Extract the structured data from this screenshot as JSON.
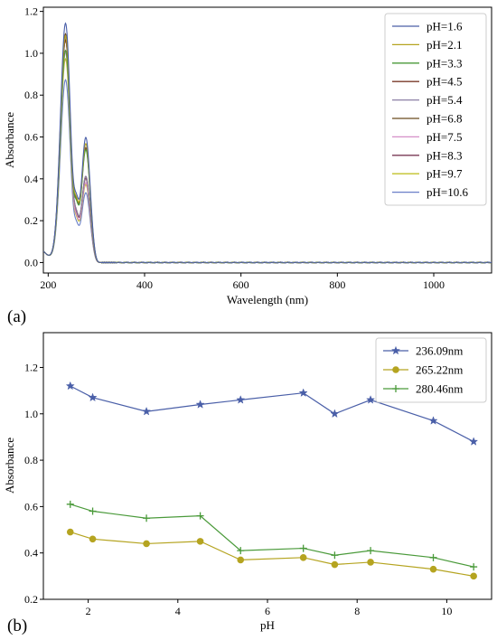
{
  "chart_data": [
    {
      "type": "line",
      "panel_label": "(a)",
      "xlabel": "Wavelength (nm)",
      "ylabel": "Absorbance",
      "xlim": [
        190,
        1120
      ],
      "ylim": [
        -0.05,
        1.22
      ],
      "xticks": [
        200,
        400,
        600,
        800,
        1000
      ],
      "yticks": [
        0.0,
        0.2,
        0.4,
        0.6,
        0.8,
        1.0,
        1.2
      ],
      "legend_position": "top-right",
      "grid": false,
      "series": [
        {
          "name": "pH=1.6",
          "color": "#4a5fa8",
          "peak1": 1.14,
          "peak2": 0.61,
          "trough": 0.45
        },
        {
          "name": "pH=2.1",
          "color": "#b5a420",
          "peak1": 1.08,
          "peak2": 0.58,
          "trough": 0.43
        },
        {
          "name": "pH=3.3",
          "color": "#4a9a3a",
          "peak1": 1.01,
          "peak2": 0.55,
          "trough": 0.41
        },
        {
          "name": "pH=4.5",
          "color": "#7a3a2a",
          "peak1": 1.06,
          "peak2": 0.56,
          "trough": 0.42
        },
        {
          "name": "pH=5.4",
          "color": "#8c7fa6",
          "peak1": 1.07,
          "peak2": 0.42,
          "trough": 0.33
        },
        {
          "name": "pH=6.8",
          "color": "#6b4a1f",
          "peak1": 1.09,
          "peak2": 0.42,
          "trough": 0.33
        },
        {
          "name": "pH=7.5",
          "color": "#d68fc8",
          "peak1": 1.0,
          "peak2": 0.39,
          "trough": 0.3
        },
        {
          "name": "pH=8.3",
          "color": "#7a3a55",
          "peak1": 1.06,
          "peak2": 0.41,
          "trough": 0.32
        },
        {
          "name": "pH=9.7",
          "color": "#c2c22a",
          "peak1": 0.97,
          "peak2": 0.38,
          "trough": 0.29
        },
        {
          "name": "pH=10.6",
          "color": "#6a7fc8",
          "peak1": 0.87,
          "peak2": 0.34,
          "trough": 0.26
        }
      ]
    },
    {
      "type": "line",
      "panel_label": "(b)",
      "xlabel": "pH",
      "ylabel": "Absorbance",
      "xlim": [
        1.0,
        11.0
      ],
      "ylim": [
        0.2,
        1.35
      ],
      "xticks": [
        2,
        4,
        6,
        8,
        10
      ],
      "yticks": [
        0.2,
        0.4,
        0.6,
        0.8,
        1.0,
        1.2
      ],
      "legend_position": "top-right",
      "grid": false,
      "x": [
        1.6,
        2.1,
        3.3,
        4.5,
        5.4,
        6.8,
        7.5,
        8.3,
        9.7,
        10.6
      ],
      "series": [
        {
          "name": "236.09nm",
          "color": "#4a5fa8",
          "marker": "star",
          "values": [
            1.12,
            1.07,
            1.01,
            1.04,
            1.06,
            1.09,
            1.0,
            1.06,
            0.97,
            0.88
          ]
        },
        {
          "name": "265.22nm",
          "color": "#b5a420",
          "marker": "circle",
          "values": [
            0.49,
            0.46,
            0.44,
            0.45,
            0.37,
            0.38,
            0.35,
            0.36,
            0.33,
            0.3
          ]
        },
        {
          "name": "280.46nm",
          "color": "#4a9a3a",
          "marker": "plus",
          "values": [
            0.61,
            0.58,
            0.55,
            0.56,
            0.41,
            0.42,
            0.39,
            0.41,
            0.38,
            0.34
          ]
        }
      ]
    }
  ]
}
